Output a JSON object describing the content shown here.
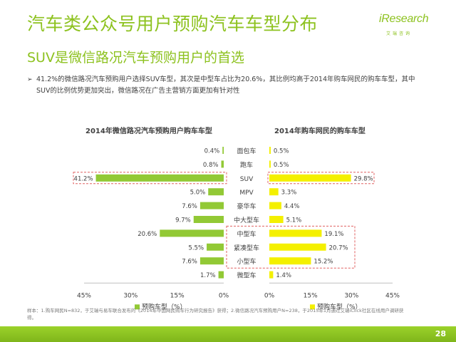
{
  "header": {
    "title": "汽车类公众号用户预购汽车车型分布",
    "subtitle": "SUV是微信路况汽车预购用户的首选"
  },
  "logo": {
    "word": "iResearch",
    "sub": "艾瑞咨询"
  },
  "bullet": {
    "marker": "➢",
    "text": "41.2%的微信路况汽车预购用户选择SUV车型，其次是中型车占比为20.6%，其比例均高于2014年购车网民的购车车型，其中SUV的比例优势更加突出，微信路况在广告主营销方面更加有针对性"
  },
  "colors": {
    "brand": "#8dc21f",
    "left_bar": "#92c935",
    "right_bar": "#f4f000",
    "highlight_box": "#e06060"
  },
  "chart_data": [
    {
      "type": "bar",
      "orientation": "horizontal",
      "title": "2014年微信路况汽车预购用户购车车型",
      "categories": [
        "面包车",
        "跑车",
        "SUV",
        "MPV",
        "豪华车",
        "中大型车",
        "中型车",
        "紧凑型车",
        "小型车",
        "微型车"
      ],
      "values": [
        0.4,
        0.8,
        41.2,
        5.0,
        7.6,
        9.7,
        20.6,
        5.5,
        7.6,
        1.7
      ],
      "value_labels": [
        "0.4%",
        "0.8%",
        "41.2%",
        "5.0%",
        "7.6%",
        "9.7%",
        "20.6%",
        "5.5%",
        "7.6%",
        "1.7%"
      ],
      "xlim": [
        0,
        45
      ],
      "ticks": [
        "45%",
        "30%",
        "15%",
        "0%"
      ],
      "direction": "reversed",
      "legend": "预购车型（%）",
      "highlighted": [
        "SUV"
      ]
    },
    {
      "type": "bar",
      "orientation": "horizontal",
      "title": "2014年购车网民的购车车型",
      "categories": [
        "面包车",
        "跑车",
        "SUV",
        "MPV",
        "豪华车",
        "中大型车",
        "中型车",
        "紧凑型车",
        "小型车",
        "微型车"
      ],
      "values": [
        0.5,
        0.5,
        29.8,
        3.3,
        4.4,
        5.1,
        19.1,
        20.7,
        15.2,
        1.4
      ],
      "value_labels": [
        "0.5%",
        "0.5%",
        "29.8%",
        "3.3%",
        "4.4%",
        "5.1%",
        "19.1%",
        "20.7%",
        "15.2%",
        "1.4%"
      ],
      "xlim": [
        0,
        45
      ],
      "ticks": [
        "0%",
        "15%",
        "30%",
        "45%"
      ],
      "legend": "预购车型（%）",
      "highlighted": [
        "SUV",
        "中型车",
        "紧凑型车",
        "小型车"
      ]
    }
  ],
  "source": "样本：1.购车网民N=832，于艾瑞与易车联合发布的《2014年中国网民购车行为研究报告》获得；2.微信路况汽车预购用户N=238，于2015年1月通过艾瑞iClick社区在线用户调研获得。",
  "page_number": "28"
}
